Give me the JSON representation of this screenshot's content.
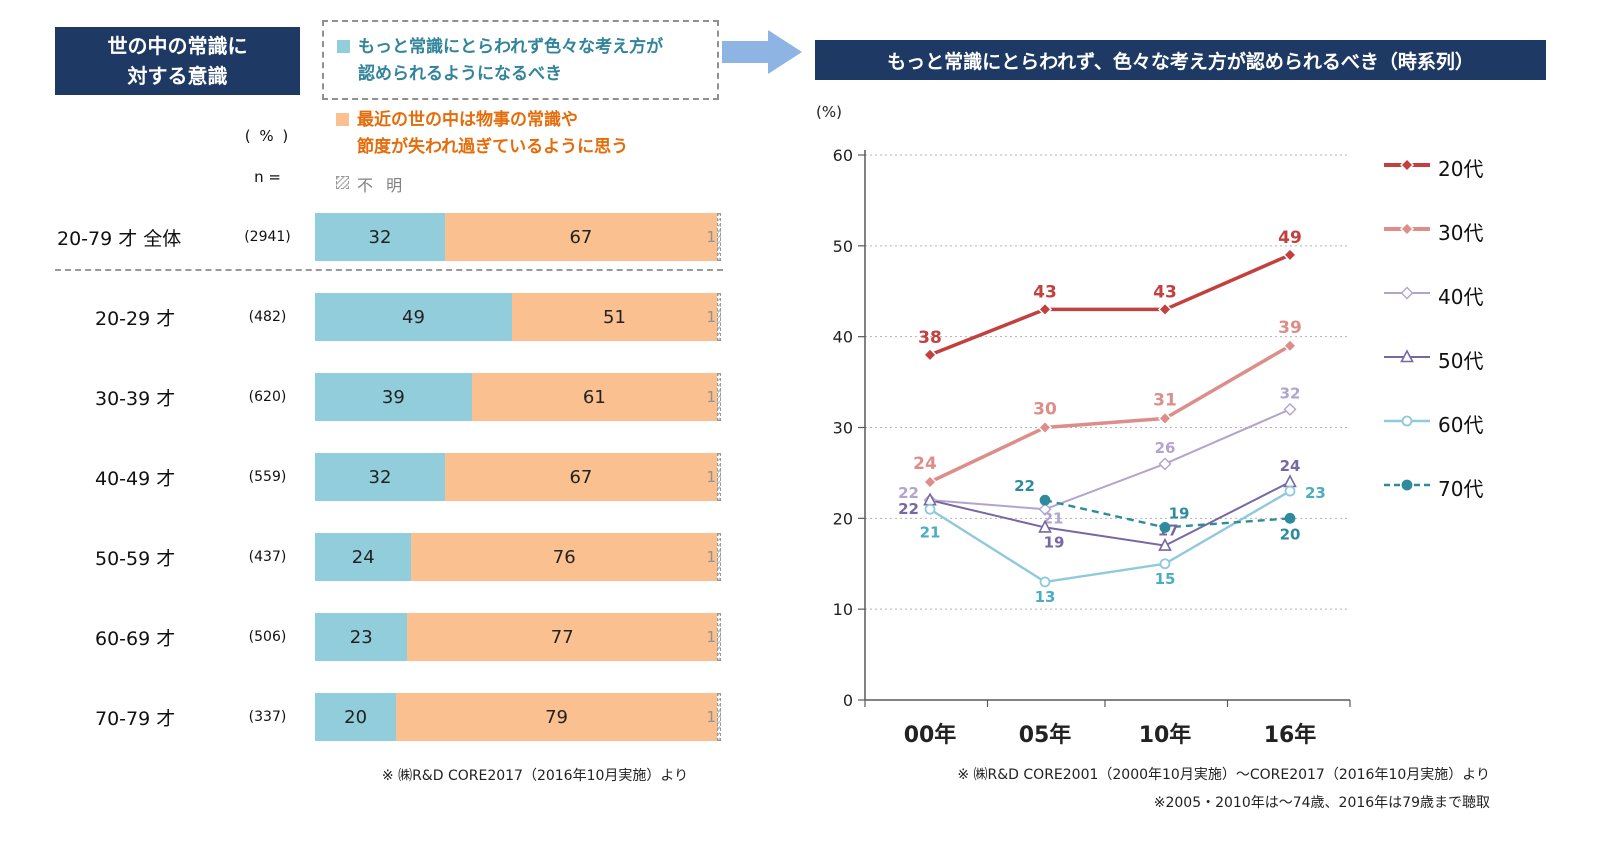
{
  "left_panel": {
    "title": "世の中の常識に\n対する意識",
    "percent_label": "( % )",
    "n_label": "n =",
    "footnote": "※ ㈱R&D CORE2017（2016年10月実施）より"
  },
  "right_panel": {
    "title": "もっと常識にとらわれず、色々な考え方が認められるべき（時系列）",
    "unit_label": "(%)",
    "footnote1": "※ ㈱R&D CORE2001（2000年10月実施）～CORE2017（2016年10月実施）より",
    "footnote2": "※2005・2010年は～74歳、2016年は79歳まで聴取"
  },
  "colors": {
    "header_navy": "#1E3A64",
    "arrow_blue": "#8DB4E2",
    "bar_teal": "#92CDDC",
    "bar_orange": "#FAC090"
  },
  "chart_data": [
    {
      "type": "bar",
      "title": "世の中の常識に対する意識",
      "orientation": "horizontal_stacked",
      "unit": "%",
      "categories": [
        "20-79 才  全体",
        "20-29 才",
        "30-39 才",
        "40-49 才",
        "50-59 才",
        "60-69 才",
        "70-79 才"
      ],
      "n_labels": [
        "(2941)",
        "(482)",
        "(620)",
        "(559)",
        "(437)",
        "(506)",
        "(337)"
      ],
      "series": [
        {
          "name": "もっと常識にとらわれず色々な考え方が認められるようになるべき",
          "legend_text": "もっと常識にとらわれず色々な考え方が\n認められるようになるべき",
          "color": "#92CDDC",
          "values": [
            32,
            49,
            39,
            32,
            24,
            23,
            20
          ]
        },
        {
          "name": "最近の世の中は物事の常識や節度が失われ過ぎているように思う",
          "legend_text": "最近の世の中は物事の常識や\n節度が失われ過ぎているように思う",
          "color": "#FAC090",
          "values": [
            67,
            51,
            61,
            67,
            76,
            77,
            79
          ]
        },
        {
          "name": "不明",
          "legend_text": "不 明",
          "color": "hatch",
          "values": [
            1,
            1,
            1,
            1,
            1,
            1,
            1
          ]
        }
      ]
    },
    {
      "type": "line",
      "title": "もっと常識にとらわれず、色々な考え方が認められるべき（時系列）",
      "unit": "%",
      "x": [
        "00年",
        "05年",
        "10年",
        "16年"
      ],
      "ylim": [
        0,
        60
      ],
      "yticks": [
        0,
        10,
        20,
        30,
        40,
        50,
        60
      ],
      "grid": "dotted-horizontal",
      "legend_position": "right",
      "series": [
        {
          "name": "20代",
          "color": "#C2403E",
          "marker": "diamond",
          "marker_fill": "solid",
          "line_style": "solid",
          "values": [
            38,
            43,
            43,
            49
          ]
        },
        {
          "name": "30代",
          "color": "#DD8E8A",
          "marker": "diamond",
          "marker_fill": "solid",
          "line_style": "solid",
          "values": [
            24,
            30,
            31,
            39
          ]
        },
        {
          "name": "40代",
          "color": "#B2A4CC",
          "marker": "diamond",
          "marker_fill": "open",
          "line_style": "solid",
          "values": [
            22,
            21,
            26,
            32
          ]
        },
        {
          "name": "50代",
          "color": "#7767A3",
          "marker": "triangle",
          "marker_fill": "open",
          "line_style": "solid",
          "values": [
            22,
            19,
            17,
            24
          ]
        },
        {
          "name": "60代",
          "color": "#8FC9DB",
          "label_color": "#4BACC6",
          "marker": "circle",
          "marker_fill": "open",
          "line_style": "solid",
          "values": [
            21,
            13,
            15,
            23
          ]
        },
        {
          "name": "70代",
          "color": "#2E8B9E",
          "marker": "circle",
          "marker_fill": "solid",
          "line_style": "dashed",
          "values": [
            null,
            22,
            19,
            20
          ]
        }
      ]
    }
  ]
}
